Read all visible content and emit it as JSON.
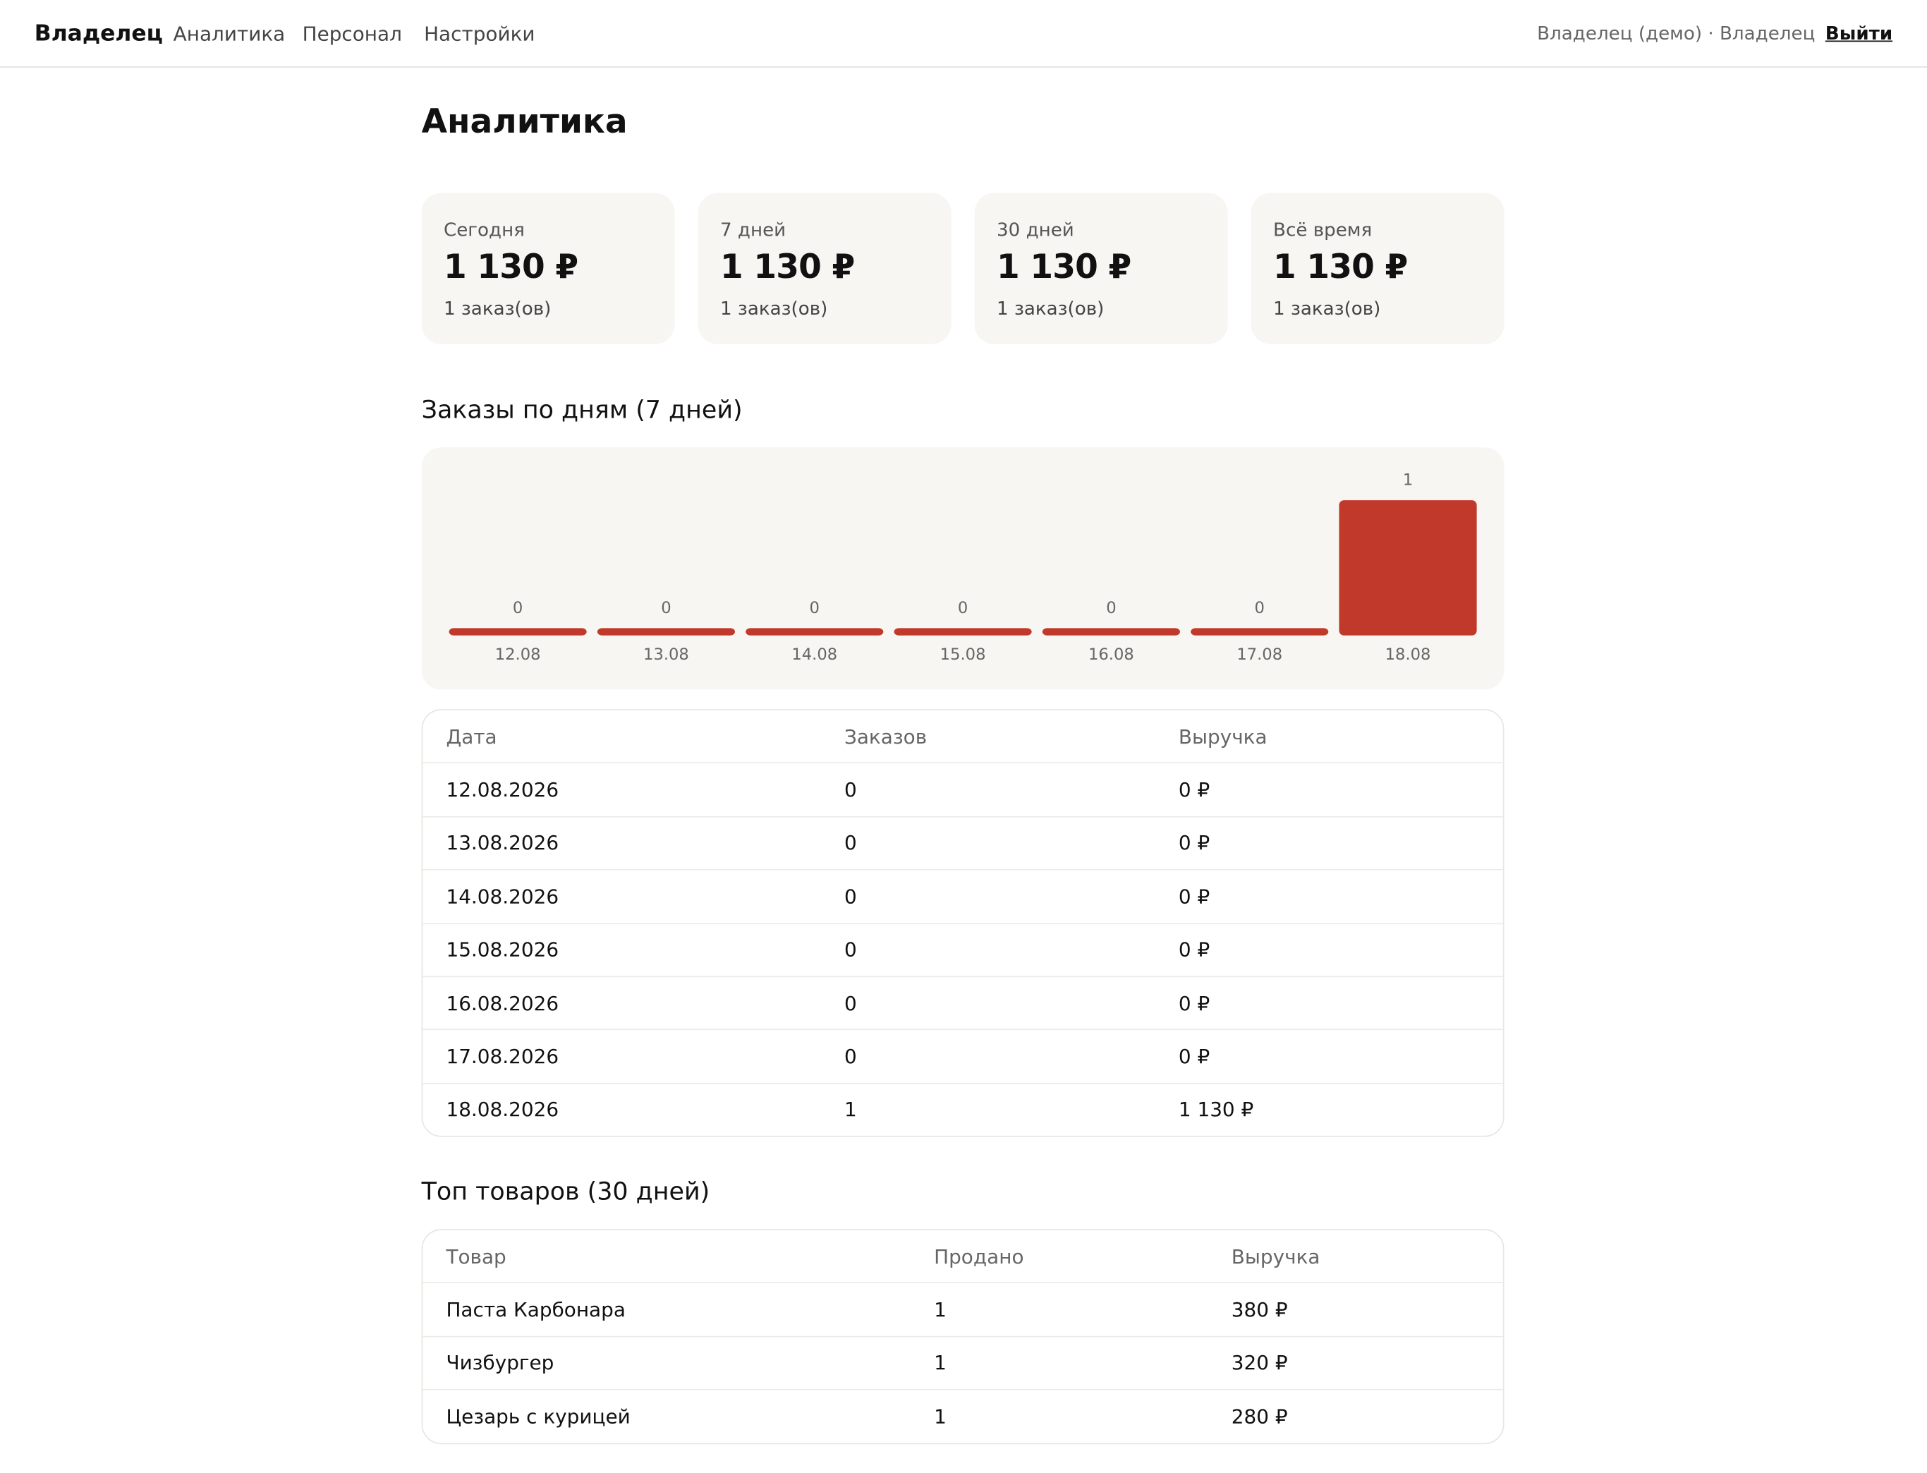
{
  "header": {
    "brand": "Владелец",
    "nav": [
      "Аналитика",
      "Персонал",
      "Настройки"
    ],
    "user": "Владелец (демо) · Владелец",
    "logout": "Выйти"
  },
  "page_title": "Аналитика",
  "cards": [
    {
      "label": "Сегодня",
      "amount": "1 130 ₽",
      "orders": "1 заказ(ов)"
    },
    {
      "label": "7 дней",
      "amount": "1 130 ₽",
      "orders": "1 заказ(ов)"
    },
    {
      "label": "30 дней",
      "amount": "1 130 ₽",
      "orders": "1 заказ(ов)"
    },
    {
      "label": "Всё время",
      "amount": "1 130 ₽",
      "orders": "1 заказ(ов)"
    }
  ],
  "chart_data": {
    "type": "bar",
    "title": "Заказы по дням (7 дней)",
    "categories": [
      "12.08",
      "13.08",
      "14.08",
      "15.08",
      "16.08",
      "17.08",
      "18.08"
    ],
    "values": [
      0,
      0,
      0,
      0,
      0,
      0,
      1
    ],
    "color": "#c0392b",
    "ylim": [
      0,
      1
    ]
  },
  "daily_table": {
    "columns": [
      "Дата",
      "Заказов",
      "Выручка"
    ],
    "rows": [
      [
        "12.08.2026",
        "0",
        "0 ₽"
      ],
      [
        "13.08.2026",
        "0",
        "0 ₽"
      ],
      [
        "14.08.2026",
        "0",
        "0 ₽"
      ],
      [
        "15.08.2026",
        "0",
        "0 ₽"
      ],
      [
        "16.08.2026",
        "0",
        "0 ₽"
      ],
      [
        "17.08.2026",
        "0",
        "0 ₽"
      ],
      [
        "18.08.2026",
        "1",
        "1 130 ₽"
      ]
    ]
  },
  "top_table": {
    "title": "Топ товаров (30 дней)",
    "columns": [
      "Товар",
      "Продано",
      "Выручка"
    ],
    "rows": [
      [
        "Паста Карбонара",
        "1",
        "380 ₽"
      ],
      [
        "Чизбургер",
        "1",
        "320 ₽"
      ],
      [
        "Цезарь с курицей",
        "1",
        "280 ₽"
      ]
    ]
  }
}
